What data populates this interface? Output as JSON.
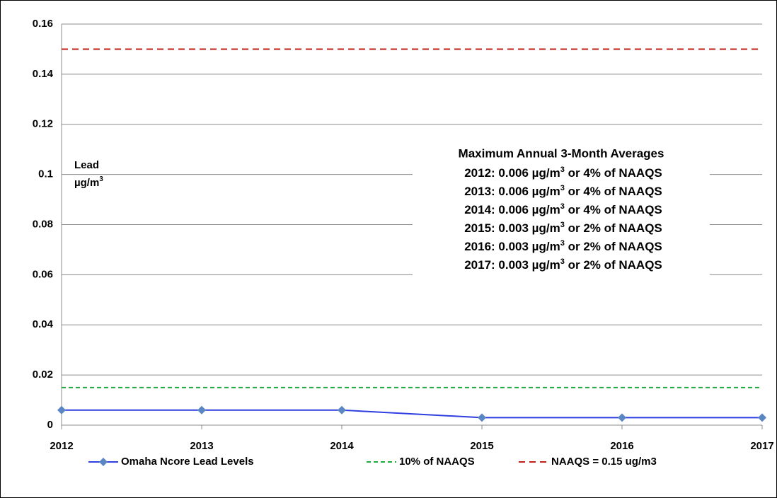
{
  "chart_data": {
    "type": "line",
    "y_label": [
      "Lead",
      "µg/m",
      "3"
    ],
    "annotation_title": "Maximum Annual 3-Month Averages",
    "annotations": [
      [
        "2012: 0.006 µg/m",
        "3",
        " or 4% of NAAQS"
      ],
      [
        "2013: 0.006 µg/m",
        "3",
        " or 4% of NAAQS"
      ],
      [
        "2014: 0.006 µg/m",
        "3",
        " or 4% of NAAQS"
      ],
      [
        "2015: 0.003 µg/m",
        "3",
        " or 2% of NAAQS"
      ],
      [
        "2016: 0.003 µg/m",
        "3",
        " or 2% of NAAQS"
      ],
      [
        "2017: 0.003 µg/m",
        "3",
        " or 2% of NAAQS"
      ]
    ],
    "x": [
      2012,
      2013,
      2014,
      2015,
      2016,
      2017
    ],
    "xlim": [
      2012,
      2017
    ],
    "xticks": [
      2012,
      2013,
      2014,
      2015,
      2016,
      2017
    ],
    "ylim": [
      0,
      0.16
    ],
    "yticks": [
      0,
      0.02,
      0.04,
      0.06,
      0.08,
      0.1,
      0.12,
      0.14,
      0.16
    ],
    "grid": true,
    "legend": "bottom",
    "series": [
      {
        "name": "Omaha Ncore Lead Levels",
        "color": "#2e3ee0",
        "marker_color": "#5b86c4",
        "dash": "none",
        "markers": true,
        "values": [
          0.006,
          0.006,
          0.006,
          0.003,
          0.003,
          0.003
        ]
      },
      {
        "name": "10% of NAAQS",
        "color": "#1faa40",
        "dash": "6 4",
        "markers": false,
        "values": [
          0.015,
          0.015,
          0.015,
          0.015,
          0.015,
          0.015
        ]
      },
      {
        "name": "NAAQS = 0.15 ug/m3",
        "color": "#c0201a",
        "dash": "9 6",
        "markers": false,
        "values": [
          0.15,
          0.15,
          0.15,
          0.15,
          0.15,
          0.15
        ]
      }
    ]
  }
}
